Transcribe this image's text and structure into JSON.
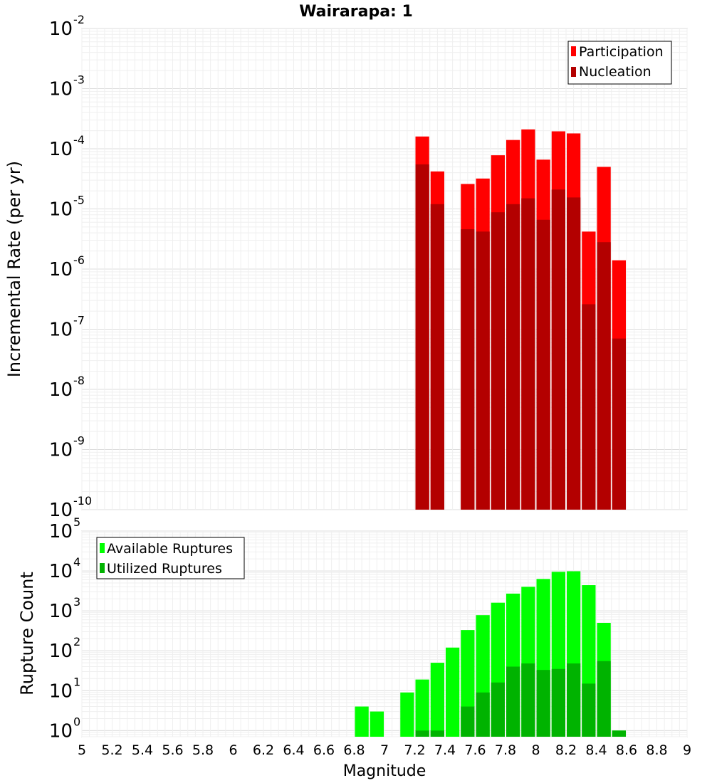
{
  "chart_data": [
    {
      "type": "bar",
      "title": "Wairarapa: 1",
      "ylabel": "Incremental Rate (per yr)",
      "xlabel": "",
      "x_range": [
        5,
        9
      ],
      "yscale": "log",
      "ylim": [
        1e-10,
        0.01
      ],
      "y_tick_exponents": [
        -10,
        -9,
        -8,
        -7,
        -6,
        -5,
        -4,
        -3,
        -2
      ],
      "grid": true,
      "legend_position": "top-right",
      "bar_width": 0.1,
      "x": [
        7.25,
        7.35,
        7.55,
        7.65,
        7.75,
        7.85,
        7.95,
        8.05,
        8.15,
        8.25,
        8.35,
        8.45,
        8.55
      ],
      "series": [
        {
          "name": "Participation",
          "color": "#ff0000",
          "values": [
            0.00016,
            4.2e-05,
            2.6e-05,
            3.2e-05,
            7.8e-05,
            0.00014,
            0.00021,
            6.6e-05,
            0.000195,
            0.00018,
            4.2e-06,
            5e-05,
            1.4e-06
          ]
        },
        {
          "name": "Nucleation",
          "color": "#b30000",
          "values": [
            5.5e-05,
            1.2e-05,
            4.6e-06,
            4.2e-06,
            8.8e-06,
            1.2e-05,
            1.5e-05,
            6.6e-06,
            2.1e-05,
            1.55e-05,
            2.6e-07,
            2.8e-06,
            7e-08
          ]
        }
      ]
    },
    {
      "type": "bar",
      "title": "",
      "ylabel": "Rupture Count",
      "xlabel": "Magnitude",
      "x_range": [
        5,
        9
      ],
      "x_ticks": [
        5,
        5.2,
        5.4,
        5.6,
        5.8,
        6,
        6.2,
        6.4,
        6.6,
        6.8,
        7,
        7.2,
        7.4,
        7.6,
        7.8,
        8,
        8.2,
        8.4,
        8.6,
        8.8,
        9
      ],
      "x_tick_labels": [
        "5",
        "5.2",
        "5.4",
        "5.6",
        "5.8",
        "6",
        "6.2",
        "6.4",
        "6.6",
        "6.8",
        "7",
        "7.2",
        "7.4",
        "7.6",
        "7.8",
        "8",
        "8.2",
        "8.4",
        "8.6",
        "8.8",
        "9"
      ],
      "yscale": "log",
      "ylim": [
        0.7,
        100000
      ],
      "y_tick_exponents": [
        0,
        1,
        2,
        3,
        4,
        5
      ],
      "grid": true,
      "legend_position": "top-left",
      "bar_width": 0.1,
      "x": [
        6.85,
        6.95,
        7.15,
        7.25,
        7.35,
        7.45,
        7.55,
        7.65,
        7.75,
        7.85,
        7.95,
        8.05,
        8.15,
        8.25,
        8.35,
        8.45,
        8.55
      ],
      "series": [
        {
          "name": "Available Ruptures",
          "color": "#00ff00",
          "values": [
            4,
            3,
            9,
            19,
            50,
            120,
            330,
            780,
            1600,
            2700,
            4000,
            6300,
            9500,
            9800,
            4400,
            500,
            1
          ]
        },
        {
          "name": "Utilized Ruptures",
          "color": "#00b300",
          "values": [
            0,
            0,
            0,
            1,
            1,
            0,
            4,
            9,
            16,
            40,
            48,
            33,
            35,
            48,
            15,
            55,
            1
          ]
        }
      ]
    }
  ]
}
